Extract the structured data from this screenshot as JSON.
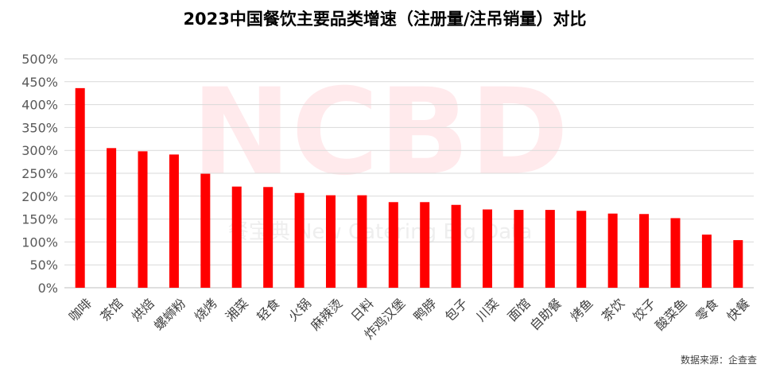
{
  "watermark": {
    "logo_text": "NCBD",
    "sub_text": "餐宝典 New Catering Big Data"
  },
  "source_note": "数据来源：企查查",
  "chart_data": {
    "type": "bar",
    "title": "2023中国餐饮主要品类增速（注册量/注吊销量）对比",
    "xlabel": "",
    "ylabel": "",
    "ylim": [
      0,
      500
    ],
    "y_ticks": [
      "0%",
      "50%",
      "100%",
      "150%",
      "200%",
      "250%",
      "300%",
      "350%",
      "400%",
      "450%",
      "500%"
    ],
    "y_tick_values": [
      0,
      50,
      100,
      150,
      200,
      250,
      300,
      350,
      400,
      450,
      500
    ],
    "grid": true,
    "legend": "none",
    "bar_color": "#ff0000",
    "categories": [
      "咖啡",
      "茶馆",
      "烘焙",
      "螺蛳粉",
      "烧烤",
      "湘菜",
      "轻食",
      "火锅",
      "麻辣烫",
      "日料",
      "炸鸡汉堡",
      "鸭脖",
      "包子",
      "川菜",
      "面馆",
      "自助餐",
      "烤鱼",
      "茶饮",
      "饺子",
      "酸菜鱼",
      "零食",
      "快餐"
    ],
    "values": [
      436,
      305,
      298,
      291,
      249,
      221,
      220,
      207,
      202,
      202,
      187,
      187,
      181,
      171,
      170,
      170,
      168,
      162,
      161,
      152,
      116,
      104
    ]
  }
}
